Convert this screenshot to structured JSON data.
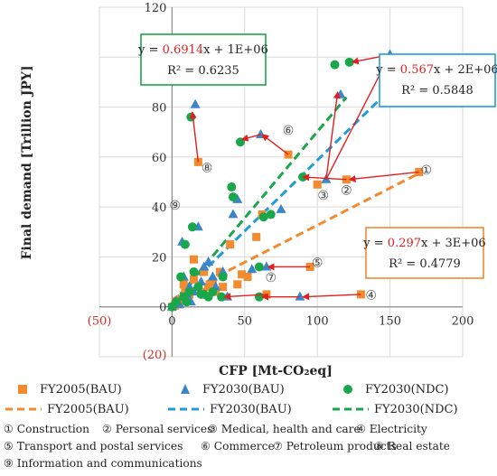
{
  "chart_data": {
    "type": "scatter",
    "xlabel": "CFP [Mt-CO₂eq]",
    "ylabel": "Final demand [Trillion JPY]",
    "xlim": [
      -50,
      200
    ],
    "ylim": [
      -20,
      120
    ],
    "x_ticks": [
      "(50)",
      "0",
      "50",
      "100",
      "150",
      "200"
    ],
    "y_ticks": [
      "(20)",
      "0",
      "20",
      "40",
      "60",
      "80",
      "100",
      "120"
    ],
    "grid": true,
    "legend_position": "bottom",
    "series": [
      {
        "name": "FY2005(BAU)",
        "marker": "square",
        "color": "#f28a2e",
        "points": [
          [
            170,
            54
          ],
          [
            120,
            51
          ],
          [
            100,
            49
          ],
          [
            130,
            5
          ],
          [
            95,
            16
          ],
          [
            65,
            5
          ],
          [
            80,
            61
          ],
          [
            18,
            58
          ],
          [
            8,
            9
          ],
          [
            3,
            2
          ],
          [
            10,
            4
          ],
          [
            15,
            19
          ],
          [
            25,
            8
          ],
          [
            30,
            6
          ],
          [
            40,
            25
          ],
          [
            52,
            12
          ],
          [
            58,
            28
          ],
          [
            62,
            37
          ],
          [
            35,
            8
          ],
          [
            45,
            9
          ],
          [
            28,
            10
          ],
          [
            20,
            6
          ],
          [
            12,
            5
          ],
          [
            5,
            1
          ],
          [
            0,
            0
          ],
          [
            2,
            0.5
          ],
          [
            6,
            3
          ],
          [
            22,
            14
          ],
          [
            33,
            14
          ],
          [
            48,
            13
          ],
          [
            15,
            11
          ],
          [
            9,
            7
          ]
        ]
      },
      {
        "name": "FY2030(BAU)",
        "marker": "triangle",
        "color": "#3a86c8",
        "points": [
          [
            150,
            101
          ],
          [
            116,
            85
          ],
          [
            106,
            51
          ],
          [
            88,
            4
          ],
          [
            65,
            16
          ],
          [
            38,
            4
          ],
          [
            61,
            69
          ],
          [
            16,
            81
          ],
          [
            7,
            26
          ],
          [
            13,
            2
          ],
          [
            10,
            5
          ],
          [
            18,
            32
          ],
          [
            42,
            37
          ],
          [
            45,
            43
          ],
          [
            55,
            15
          ],
          [
            75,
            39
          ],
          [
            22,
            16
          ],
          [
            28,
            12
          ],
          [
            30,
            8
          ],
          [
            3,
            2
          ],
          [
            0,
            0
          ],
          [
            8,
            12
          ],
          [
            25,
            18
          ],
          [
            35,
            14
          ],
          [
            12,
            8
          ],
          [
            20,
            10
          ],
          [
            5,
            1
          ],
          [
            15,
            6
          ]
        ]
      },
      {
        "name": "FY2030(NDC)",
        "marker": "circle",
        "color": "#1aa64a",
        "points": [
          [
            122,
            98
          ],
          [
            112,
            97
          ],
          [
            90,
            52
          ],
          [
            34,
            4
          ],
          [
            60,
            16
          ],
          [
            60,
            4
          ],
          [
            47,
            66
          ],
          [
            13,
            76
          ],
          [
            9,
            25
          ],
          [
            12,
            6
          ],
          [
            22,
            5
          ],
          [
            14,
            32
          ],
          [
            42,
            44
          ],
          [
            41,
            48
          ],
          [
            68,
            37
          ],
          [
            63,
            36
          ],
          [
            20,
            5
          ],
          [
            6,
            12
          ],
          [
            3,
            2
          ],
          [
            0,
            0
          ],
          [
            18,
            8
          ],
          [
            25,
            4
          ],
          [
            35,
            12
          ],
          [
            10,
            2
          ],
          [
            15,
            14
          ],
          [
            28,
            6
          ],
          [
            8,
            4
          ]
        ]
      }
    ],
    "trendlines": [
      {
        "name": "FY2005(BAU)",
        "color": "#f28a2e",
        "slope": 0.297,
        "intercept": 3,
        "x_range": [
          0,
          170
        ]
      },
      {
        "name": "FY2030(BAU)",
        "color": "#1f9bd7",
        "slope": 0.567,
        "intercept": 2,
        "x_range": [
          0,
          150
        ]
      },
      {
        "name": "FY2030(NDC)",
        "color": "#1aa64a",
        "slope": 0.6914,
        "intercept": 1,
        "x_range": [
          0,
          120
        ]
      }
    ],
    "arrows": [
      [
        [
          170,
          54
        ],
        [
          122,
          51
        ]
      ],
      [
        [
          120,
          51
        ],
        [
          90,
          52
        ]
      ],
      [
        [
          130,
          5
        ],
        [
          90,
          4
        ]
      ],
      [
        [
          88,
          4
        ],
        [
          62,
          4
        ]
      ],
      [
        [
          95,
          16
        ],
        [
          66,
          16
        ]
      ],
      [
        [
          65,
          5
        ],
        [
          36,
          4
        ]
      ],
      [
        [
          80,
          61
        ],
        [
          62,
          69
        ]
      ],
      [
        [
          61,
          69
        ],
        [
          48,
          67
        ]
      ],
      [
        [
          18,
          58
        ],
        [
          14,
          78
        ]
      ],
      [
        [
          106,
          51
        ],
        [
          114,
          86
        ]
      ],
      [
        [
          106,
          51
        ],
        [
          150,
          101
        ]
      ],
      [
        [
          150,
          101
        ],
        [
          124,
          98
        ]
      ]
    ],
    "equation_boxes": [
      {
        "color": "#1aa64a",
        "eq_prefix": "y = ",
        "eq_coef": "0.6914",
        "eq_suffix": "x + 1E+06",
        "r2": "R² = 0.6235"
      },
      {
        "color": "#1f9bd7",
        "eq_prefix": "y = ",
        "eq_coef": "0.567",
        "eq_suffix": "x + 2E+06",
        "r2": "R² = 0.5848"
      },
      {
        "color": "#f28a2e",
        "eq_prefix": "y = ",
        "eq_coef": "0.297",
        "eq_suffix": "x + 3E+06",
        "r2": "R² = 0.4779"
      }
    ],
    "sector_labels": [
      {
        "num": "①",
        "x": 175,
        "y": 53
      },
      {
        "num": "②",
        "x": 120,
        "y": 45
      },
      {
        "num": "③",
        "x": 104,
        "y": 43
      },
      {
        "num": "④",
        "x": 137,
        "y": 3
      },
      {
        "num": "⑤",
        "x": 100,
        "y": 16
      },
      {
        "num": "⑥",
        "x": 80,
        "y": 69
      },
      {
        "num": "⑦",
        "x": 68,
        "y": 10
      },
      {
        "num": "⑧",
        "x": 24,
        "y": 54
      },
      {
        "num": "⑨",
        "x": 2,
        "y": 39
      }
    ]
  },
  "legend": {
    "markers": [
      "FY2005(BAU)",
      "FY2030(BAU)",
      "FY2030(NDC)"
    ],
    "lines": [
      "FY2005(BAU)",
      "FY2030(BAU)",
      "FY2030(NDC)"
    ]
  },
  "sector_legend": [
    [
      "① Construction",
      "② Personal services",
      "③ Medical, health and care",
      "④ Electricity"
    ],
    [
      "⑤ Transport and postal services",
      "⑥ Commerce",
      "⑦ Petroleum products",
      "⑧ Real estate"
    ],
    [
      "⑨ Information and communications"
    ]
  ]
}
